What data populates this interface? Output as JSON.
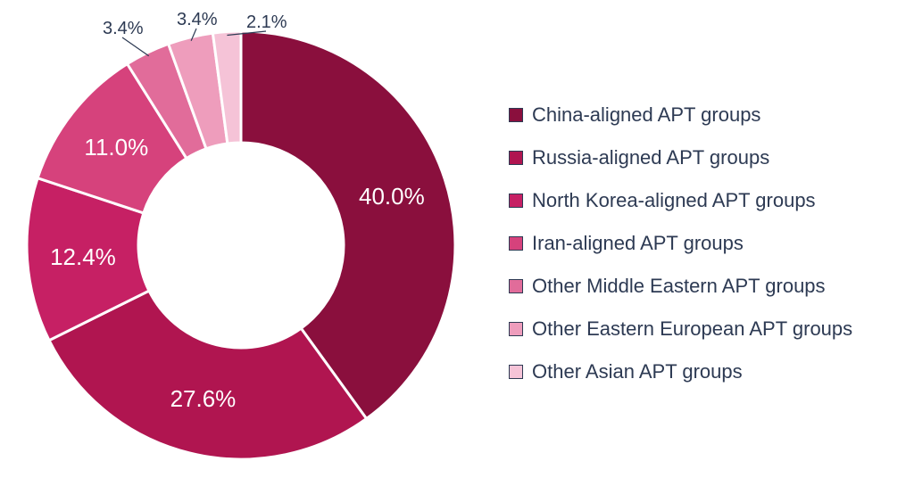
{
  "chart": {
    "type": "donut",
    "background_color": "#ffffff",
    "text_color": "#2d3a53",
    "label_inside_color": "#ffffff",
    "slice_gap_color": "#ffffff",
    "slice_gap_width": 3,
    "outer_radius": 240,
    "inner_radius": 115,
    "label_fontsize_inside": 26,
    "label_fontsize_outside": 20,
    "legend_fontsize": 22,
    "slices": [
      {
        "label": "China-aligned APT groups",
        "value": 40.0,
        "display": "40.0%",
        "color": "#8a0f3d"
      },
      {
        "label": "Russia-aligned APT groups",
        "value": 27.6,
        "display": "27.6%",
        "color": "#b01550"
      },
      {
        "label": "North Korea-aligned APT groups",
        "value": 12.4,
        "display": "12.4%",
        "color": "#c62064"
      },
      {
        "label": "Iran-aligned APT groups",
        "value": 11.0,
        "display": "11.0%",
        "color": "#d6427c"
      },
      {
        "label": "Other Middle Eastern APT groups",
        "value": 3.4,
        "display": "3.4%",
        "color": "#e16c9a"
      },
      {
        "label": "Other Eastern European APT groups",
        "value": 3.4,
        "display": "3.4%",
        "color": "#ee9dbc"
      },
      {
        "label": "Other Asian APT groups",
        "value": 2.1,
        "display": "2.1%",
        "color": "#f5c3d7"
      }
    ],
    "legend_swatch_border": "#2d3a53"
  }
}
